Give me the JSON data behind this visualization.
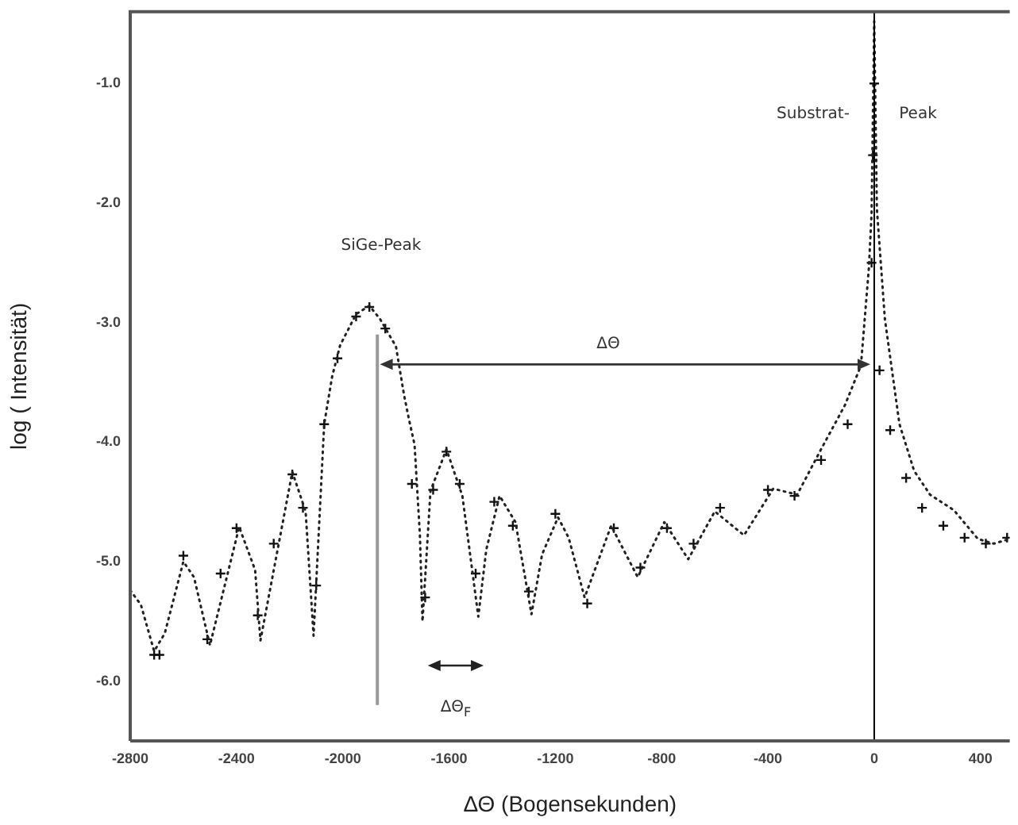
{
  "chart_data": {
    "type": "line",
    "xlabel": "ΔΘ (Bogensekunden)",
    "ylabel": "log ( Intensität)",
    "xlim": [
      -2800,
      510
    ],
    "ylim": [
      -6.5,
      -0.4
    ],
    "xticks": [
      -2800,
      -2400,
      -2000,
      -1600,
      -1200,
      -800,
      -400,
      0,
      400
    ],
    "yticks": [
      {
        "value": -1,
        "label": "-1.0"
      },
      {
        "value": -2,
        "label": "-2.0"
      },
      {
        "value": -3,
        "label": "-3.0"
      },
      {
        "value": -4,
        "label": "-4.0"
      },
      {
        "value": -5,
        "label": "-5.0"
      },
      {
        "value": -6,
        "label": "-6.0"
      }
    ],
    "grid": false,
    "legend": false,
    "series": [
      {
        "color": "#222222",
        "line_style": "dotted",
        "marker": "none",
        "x": [
          -2800,
          -2760,
          -2710,
          -2670,
          -2600,
          -2560,
          -2500,
          -2390,
          -2330,
          -2310,
          -2190,
          -2140,
          -2110,
          -2070,
          -2040,
          -2010,
          -1950,
          -1900,
          -1860,
          -1800,
          -1770,
          -1750,
          -1730,
          -1710,
          -1700,
          -1670,
          -1610,
          -1550,
          -1490,
          -1460,
          -1410,
          -1350,
          -1290,
          -1250,
          -1190,
          -1150,
          -1090,
          -990,
          -890,
          -790,
          -700,
          -600,
          -490,
          -380,
          -290,
          -200,
          -110,
          -50,
          -20,
          -10,
          0,
          10,
          40,
          95,
          150,
          210,
          300,
          390,
          450,
          510
        ],
        "values": [
          -5.24,
          -5.36,
          -5.75,
          -5.6,
          -5.0,
          -5.13,
          -5.7,
          -4.71,
          -5.07,
          -5.66,
          -4.25,
          -4.58,
          -5.62,
          -3.85,
          -3.45,
          -3.19,
          -2.93,
          -2.86,
          -2.97,
          -3.2,
          -3.6,
          -3.82,
          -4.02,
          -4.77,
          -5.5,
          -4.41,
          -4.06,
          -4.45,
          -5.46,
          -4.9,
          -4.45,
          -4.67,
          -5.44,
          -4.94,
          -4.63,
          -4.8,
          -5.3,
          -4.7,
          -5.13,
          -4.67,
          -4.98,
          -4.58,
          -4.78,
          -4.39,
          -4.44,
          -4.06,
          -3.69,
          -3.36,
          -2.54,
          -2.09,
          -0.48,
          -2.05,
          -2.97,
          -3.85,
          -4.24,
          -4.44,
          -4.57,
          -4.81,
          -4.85,
          -4.81
        ]
      },
      {
        "type": "scatter",
        "color": "#111111",
        "marker": "cross",
        "x": [
          -2710,
          -2690,
          -2600,
          -2510,
          -2460,
          -2400,
          -2320,
          -2260,
          -2190,
          -2150,
          -2100,
          -2070,
          -2020,
          -1950,
          -1900,
          -1840,
          -1810,
          -1740,
          -1690,
          -1660,
          -1610,
          -1560,
          -1500,
          -1430,
          -1360,
          -1300,
          -1200,
          -1080,
          -980,
          -880,
          -780,
          -680,
          -580,
          -400,
          -300,
          -200,
          -100,
          -40,
          -10,
          -5,
          0,
          5,
          20,
          60,
          120,
          180,
          260,
          340,
          420,
          500
        ],
        "values": [
          -5.78,
          -5.78,
          -4.95,
          -5.65,
          -5.1,
          -4.72,
          -5.45,
          -4.85,
          -4.27,
          -4.55,
          -5.2,
          -3.85,
          -3.3,
          -2.95,
          -2.87,
          -3.05,
          null,
          -4.35,
          -5.3,
          -4.4,
          -4.08,
          -4.35,
          -5.1,
          -4.5,
          -4.7,
          -5.25,
          -4.6,
          -5.35,
          -4.72,
          -5.05,
          -4.72,
          -4.85,
          -4.55,
          -4.4,
          -4.45,
          -4.15,
          -3.85,
          null,
          -2.5,
          -1.6,
          -1.0,
          null,
          -3.4,
          -3.9,
          -4.3,
          -4.55,
          -4.7,
          -4.8,
          -4.85,
          -4.8
        ]
      }
    ],
    "ref_lines": [
      {
        "axis": "x",
        "value": 0,
        "color": "#000000"
      }
    ],
    "annotations": [
      "SiGe-Peak",
      "Substrat-",
      "Peak",
      "ΔΘ",
      "ΔΘ$_{F}$"
    ]
  }
}
